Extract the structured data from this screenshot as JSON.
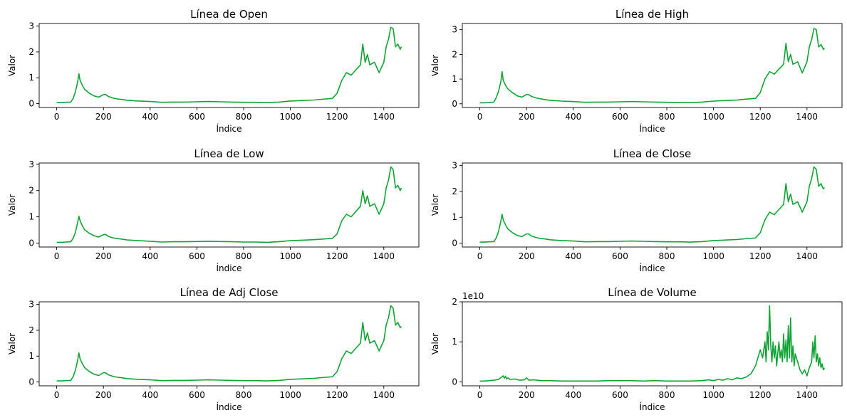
{
  "chart_data": [
    {
      "type": "line",
      "title": "Línea de Open",
      "xlabel": "Índice",
      "ylabel": "Valor",
      "xlim": [
        -75,
        1550
      ],
      "ylim": [
        -0.15,
        3.1
      ],
      "x_ticks": [
        0,
        200,
        400,
        600,
        800,
        1000,
        1200,
        1400
      ],
      "y_ticks": [
        0,
        1,
        2,
        3
      ],
      "y_tick_labels": [
        "0",
        "1",
        "2",
        "3"
      ],
      "offset_label": "",
      "color": "#12a336",
      "series": [
        {
          "x": [
            0,
            20,
            40,
            60,
            70,
            80,
            90,
            95,
            100,
            110,
            120,
            140,
            160,
            180,
            200,
            210,
            220,
            240,
            260,
            280,
            300,
            350,
            400,
            450,
            500,
            550,
            600,
            650,
            700,
            750,
            800,
            850,
            900,
            950,
            1000,
            1050,
            1100,
            1150,
            1180,
            1200,
            1220,
            1240,
            1260,
            1280,
            1300,
            1310,
            1320,
            1330,
            1340,
            1360,
            1380,
            1400,
            1410,
            1420,
            1430,
            1440,
            1450,
            1460,
            1470,
            1475
          ],
          "values": [
            0.04,
            0.04,
            0.05,
            0.06,
            0.2,
            0.45,
            0.85,
            1.15,
            0.9,
            0.7,
            0.55,
            0.4,
            0.3,
            0.25,
            0.35,
            0.35,
            0.28,
            0.22,
            0.18,
            0.16,
            0.13,
            0.1,
            0.08,
            0.05,
            0.06,
            0.06,
            0.07,
            0.08,
            0.07,
            0.06,
            0.05,
            0.05,
            0.04,
            0.06,
            0.1,
            0.12,
            0.14,
            0.18,
            0.2,
            0.4,
            0.9,
            1.2,
            1.1,
            1.3,
            1.5,
            2.3,
            1.6,
            1.9,
            1.5,
            1.6,
            1.2,
            1.6,
            2.2,
            2.5,
            2.95,
            2.9,
            2.2,
            2.3,
            2.1,
            2.2
          ]
        }
      ]
    },
    {
      "type": "line",
      "title": "Línea de High",
      "xlabel": "Índice",
      "ylabel": "Valor",
      "xlim": [
        -75,
        1550
      ],
      "ylim": [
        -0.15,
        3.25
      ],
      "x_ticks": [
        0,
        200,
        400,
        600,
        800,
        1000,
        1200,
        1400
      ],
      "y_ticks": [
        0,
        1,
        2,
        3
      ],
      "y_tick_labels": [
        "0",
        "1",
        "2",
        "3"
      ],
      "offset_label": "",
      "color": "#12a336",
      "series": [
        {
          "x": [
            0,
            20,
            40,
            60,
            70,
            80,
            90,
            95,
            100,
            110,
            120,
            140,
            160,
            180,
            200,
            210,
            220,
            240,
            260,
            280,
            300,
            350,
            400,
            450,
            500,
            550,
            600,
            650,
            700,
            750,
            800,
            850,
            900,
            950,
            1000,
            1050,
            1100,
            1150,
            1180,
            1200,
            1220,
            1240,
            1260,
            1280,
            1300,
            1310,
            1320,
            1330,
            1340,
            1360,
            1380,
            1400,
            1410,
            1420,
            1430,
            1440,
            1450,
            1460,
            1470,
            1475
          ],
          "values": [
            0.04,
            0.04,
            0.05,
            0.07,
            0.25,
            0.5,
            0.9,
            1.3,
            0.95,
            0.75,
            0.6,
            0.45,
            0.32,
            0.27,
            0.38,
            0.37,
            0.3,
            0.24,
            0.2,
            0.17,
            0.14,
            0.11,
            0.09,
            0.06,
            0.07,
            0.07,
            0.08,
            0.09,
            0.08,
            0.07,
            0.06,
            0.05,
            0.05,
            0.07,
            0.11,
            0.13,
            0.15,
            0.2,
            0.22,
            0.45,
            1.0,
            1.3,
            1.2,
            1.4,
            1.6,
            2.45,
            1.7,
            2.0,
            1.6,
            1.7,
            1.25,
            1.7,
            2.3,
            2.6,
            3.05,
            3.0,
            2.3,
            2.4,
            2.2,
            2.25
          ]
        }
      ]
    },
    {
      "type": "line",
      "title": "Línea de Low",
      "xlabel": "Índice",
      "ylabel": "Valor",
      "xlim": [
        -75,
        1550
      ],
      "ylim": [
        -0.15,
        3.05
      ],
      "x_ticks": [
        0,
        200,
        400,
        600,
        800,
        1000,
        1200,
        1400
      ],
      "y_ticks": [
        0,
        1,
        2,
        3
      ],
      "y_tick_labels": [
        "0",
        "1",
        "2",
        "3"
      ],
      "offset_label": "",
      "color": "#12a336",
      "series": [
        {
          "x": [
            0,
            20,
            40,
            60,
            70,
            80,
            90,
            95,
            100,
            110,
            120,
            140,
            160,
            180,
            200,
            210,
            220,
            240,
            260,
            280,
            300,
            350,
            400,
            450,
            500,
            550,
            600,
            650,
            700,
            750,
            800,
            850,
            900,
            950,
            1000,
            1050,
            1100,
            1150,
            1180,
            1200,
            1220,
            1240,
            1260,
            1280,
            1300,
            1310,
            1320,
            1330,
            1340,
            1360,
            1380,
            1400,
            1410,
            1420,
            1430,
            1440,
            1450,
            1460,
            1470,
            1475
          ],
          "values": [
            0.03,
            0.03,
            0.04,
            0.05,
            0.18,
            0.4,
            0.8,
            1.02,
            0.85,
            0.65,
            0.5,
            0.37,
            0.28,
            0.23,
            0.32,
            0.33,
            0.26,
            0.2,
            0.17,
            0.15,
            0.12,
            0.09,
            0.07,
            0.04,
            0.05,
            0.05,
            0.06,
            0.07,
            0.06,
            0.05,
            0.04,
            0.04,
            0.03,
            0.05,
            0.09,
            0.11,
            0.13,
            0.16,
            0.18,
            0.35,
            0.85,
            1.1,
            1.0,
            1.2,
            1.4,
            2.0,
            1.5,
            1.8,
            1.4,
            1.5,
            1.1,
            1.5,
            2.1,
            2.4,
            2.9,
            2.8,
            2.1,
            2.2,
            2.0,
            2.1
          ]
        }
      ]
    },
    {
      "type": "line",
      "title": "Línea de Close",
      "xlabel": "Índice",
      "ylabel": "Valor",
      "xlim": [
        -75,
        1550
      ],
      "ylim": [
        -0.15,
        3.1
      ],
      "x_ticks": [
        0,
        200,
        400,
        600,
        800,
        1000,
        1200,
        1400
      ],
      "y_ticks": [
        0,
        1,
        2,
        3
      ],
      "y_tick_labels": [
        "0",
        "1",
        "2",
        "3"
      ],
      "offset_label": "",
      "color": "#12a336",
      "series": [
        {
          "x": [
            0,
            20,
            40,
            60,
            70,
            80,
            90,
            95,
            100,
            110,
            120,
            140,
            160,
            180,
            200,
            210,
            220,
            240,
            260,
            280,
            300,
            350,
            400,
            450,
            500,
            550,
            600,
            650,
            700,
            750,
            800,
            850,
            900,
            950,
            1000,
            1050,
            1100,
            1150,
            1180,
            1200,
            1220,
            1240,
            1260,
            1280,
            1300,
            1310,
            1320,
            1330,
            1340,
            1360,
            1380,
            1400,
            1410,
            1420,
            1430,
            1440,
            1450,
            1460,
            1470,
            1475
          ],
          "values": [
            0.04,
            0.04,
            0.05,
            0.06,
            0.2,
            0.45,
            0.85,
            1.12,
            0.9,
            0.7,
            0.55,
            0.4,
            0.3,
            0.25,
            0.36,
            0.35,
            0.28,
            0.22,
            0.18,
            0.16,
            0.13,
            0.1,
            0.08,
            0.05,
            0.06,
            0.06,
            0.07,
            0.08,
            0.07,
            0.06,
            0.05,
            0.05,
            0.04,
            0.06,
            0.1,
            0.12,
            0.14,
            0.18,
            0.2,
            0.4,
            0.9,
            1.2,
            1.1,
            1.3,
            1.5,
            2.3,
            1.6,
            1.9,
            1.5,
            1.6,
            1.2,
            1.6,
            2.2,
            2.5,
            2.95,
            2.85,
            2.2,
            2.3,
            2.1,
            2.15
          ]
        }
      ]
    },
    {
      "type": "line",
      "title": "Línea de Adj Close",
      "xlabel": "Índice",
      "ylabel": "Valor",
      "xlim": [
        -75,
        1550
      ],
      "ylim": [
        -0.15,
        3.1
      ],
      "x_ticks": [
        0,
        200,
        400,
        600,
        800,
        1000,
        1200,
        1400
      ],
      "y_ticks": [
        0,
        1,
        2,
        3
      ],
      "y_tick_labels": [
        "0",
        "1",
        "2",
        "3"
      ],
      "offset_label": "",
      "color": "#12a336",
      "series": [
        {
          "x": [
            0,
            20,
            40,
            60,
            70,
            80,
            90,
            95,
            100,
            110,
            120,
            140,
            160,
            180,
            200,
            210,
            220,
            240,
            260,
            280,
            300,
            350,
            400,
            450,
            500,
            550,
            600,
            650,
            700,
            750,
            800,
            850,
            900,
            950,
            1000,
            1050,
            1100,
            1150,
            1180,
            1200,
            1220,
            1240,
            1260,
            1280,
            1300,
            1310,
            1320,
            1330,
            1340,
            1360,
            1380,
            1400,
            1410,
            1420,
            1430,
            1440,
            1450,
            1460,
            1470,
            1475
          ],
          "values": [
            0.04,
            0.04,
            0.05,
            0.06,
            0.2,
            0.45,
            0.85,
            1.12,
            0.9,
            0.7,
            0.55,
            0.4,
            0.3,
            0.25,
            0.36,
            0.35,
            0.28,
            0.22,
            0.18,
            0.16,
            0.13,
            0.1,
            0.08,
            0.05,
            0.06,
            0.06,
            0.07,
            0.08,
            0.07,
            0.06,
            0.05,
            0.05,
            0.04,
            0.06,
            0.1,
            0.12,
            0.14,
            0.18,
            0.2,
            0.4,
            0.9,
            1.2,
            1.1,
            1.3,
            1.5,
            2.3,
            1.6,
            1.9,
            1.5,
            1.6,
            1.2,
            1.6,
            2.2,
            2.5,
            2.95,
            2.85,
            2.2,
            2.3,
            2.1,
            2.15
          ]
        }
      ]
    },
    {
      "type": "line",
      "title": "Línea de Volume",
      "xlabel": "Índice",
      "ylabel": "Valor",
      "xlim": [
        -75,
        1550
      ],
      "ylim": [
        -0.1,
        2.0
      ],
      "x_ticks": [
        0,
        200,
        400,
        600,
        800,
        1000,
        1200,
        1400
      ],
      "y_ticks": [
        0,
        1,
        2
      ],
      "y_tick_labels": [
        "0",
        "1",
        "2"
      ],
      "offset_label": "1e10",
      "color": "#12a336",
      "series": [
        {
          "x": [
            0,
            20,
            40,
            60,
            80,
            100,
            105,
            110,
            115,
            120,
            130,
            150,
            170,
            190,
            200,
            210,
            230,
            260,
            300,
            350,
            400,
            450,
            500,
            550,
            600,
            650,
            700,
            750,
            800,
            850,
            900,
            950,
            980,
            1000,
            1020,
            1040,
            1060,
            1080,
            1100,
            1120,
            1140,
            1160,
            1170,
            1180,
            1190,
            1200,
            1210,
            1220,
            1225,
            1230,
            1235,
            1240,
            1245,
            1250,
            1255,
            1260,
            1265,
            1270,
            1275,
            1280,
            1285,
            1290,
            1295,
            1300,
            1305,
            1310,
            1315,
            1320,
            1325,
            1330,
            1335,
            1340,
            1345,
            1350,
            1360,
            1370,
            1380,
            1390,
            1400,
            1410,
            1420,
            1425,
            1430,
            1435,
            1440,
            1445,
            1450,
            1455,
            1460,
            1465,
            1470,
            1475
          ],
          "values": [
            0.02,
            0.02,
            0.03,
            0.04,
            0.06,
            0.15,
            0.09,
            0.14,
            0.07,
            0.1,
            0.06,
            0.07,
            0.04,
            0.05,
            0.1,
            0.04,
            0.05,
            0.03,
            0.03,
            0.02,
            0.02,
            0.02,
            0.02,
            0.03,
            0.03,
            0.03,
            0.02,
            0.03,
            0.02,
            0.02,
            0.02,
            0.03,
            0.05,
            0.03,
            0.06,
            0.04,
            0.08,
            0.05,
            0.1,
            0.08,
            0.12,
            0.2,
            0.3,
            0.4,
            0.6,
            0.8,
            0.6,
            1.0,
            0.5,
            1.25,
            0.8,
            1.9,
            0.9,
            0.5,
            1.0,
            0.6,
            0.9,
            0.4,
            0.7,
            1.0,
            0.6,
            0.8,
            0.5,
            1.2,
            0.6,
            1.05,
            0.5,
            1.4,
            0.6,
            1.6,
            0.5,
            0.9,
            0.4,
            0.7,
            0.5,
            0.3,
            0.2,
            0.3,
            0.15,
            0.35,
            0.5,
            1.0,
            0.6,
            1.15,
            0.5,
            0.7,
            0.4,
            0.6,
            0.35,
            0.45,
            0.3,
            0.35
          ]
        }
      ]
    }
  ]
}
